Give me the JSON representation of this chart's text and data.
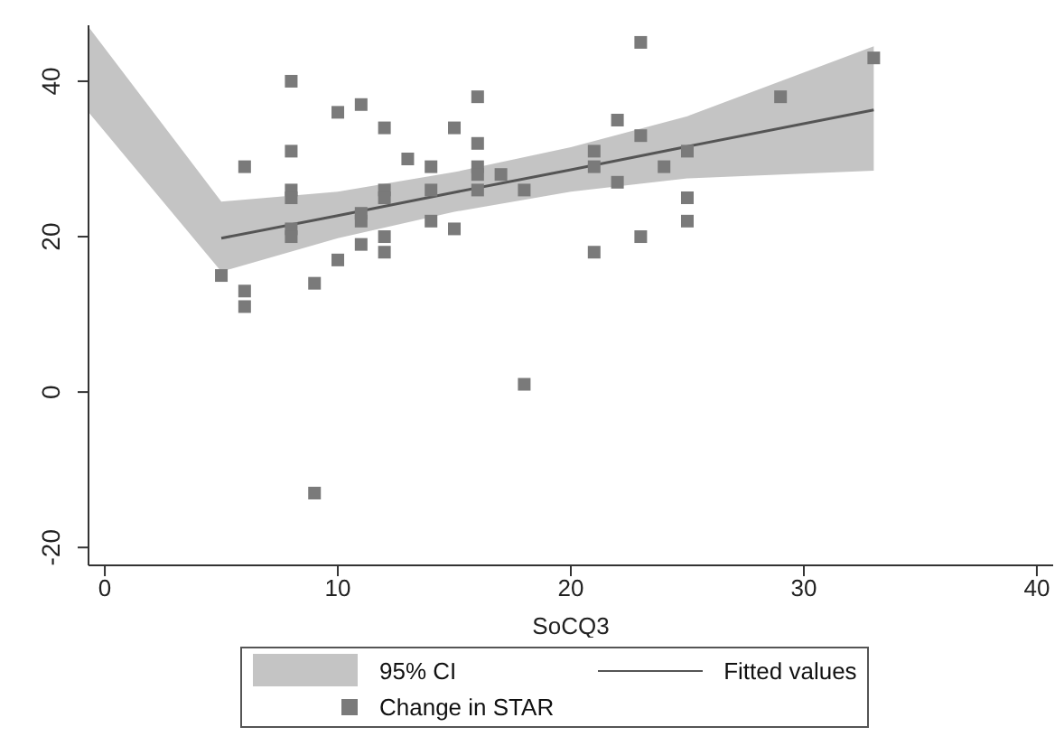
{
  "chart_data": {
    "type": "scatter",
    "xlabel": "SoCQ3",
    "xlim": [
      -0.7,
      40.7
    ],
    "ylim": [
      -22.3,
      47.2
    ],
    "xticks": [
      0,
      10,
      20,
      30,
      40
    ],
    "yticks": [
      -20,
      0,
      20,
      40
    ],
    "grid": false,
    "legend": "bottom",
    "annotations": [
      "95% CI"
    ],
    "series": [
      {
        "name": "Fitted values",
        "type": "line",
        "color": "#555555",
        "marker": "none",
        "x": [
          -0.7,
          5,
          10,
          15,
          20,
          25,
          33
        ],
        "values": [
          null,
          19.8,
          22.7,
          25.7,
          28.6,
          31.6,
          36.3
        ],
        "lower": [
          36,
          15.5,
          19.8,
          23.2,
          25.8,
          27.5,
          28.5
        ],
        "upper": [
          47,
          24.5,
          25.8,
          28.3,
          31.5,
          35.5,
          44.5
        ]
      },
      {
        "name": "Change in STAR",
        "type": "scatter",
        "marker": "square",
        "color": "#7a7a7a",
        "x": [
          5,
          6,
          6,
          6,
          8,
          8,
          8,
          8,
          8,
          8,
          9,
          9,
          10,
          10,
          11,
          11,
          11,
          11,
          12,
          12,
          12,
          12,
          12,
          13,
          14,
          14,
          14,
          15,
          15,
          16,
          16,
          16,
          16,
          16,
          17,
          18,
          18,
          23,
          33,
          29,
          22,
          23,
          21,
          21,
          25,
          24,
          22,
          25,
          25,
          23,
          21
        ],
        "values": [
          15,
          29,
          13,
          11,
          40,
          31,
          26,
          25,
          21,
          20,
          14,
          -13,
          36,
          17,
          37,
          23,
          22,
          19,
          34,
          26,
          25,
          20,
          18,
          30,
          29,
          26,
          22,
          34,
          21,
          38,
          32,
          29,
          28,
          26,
          28,
          26,
          1,
          45,
          43,
          38,
          35,
          33,
          31,
          29,
          31,
          29,
          27,
          25,
          22,
          20,
          18
        ]
      }
    ]
  }
}
